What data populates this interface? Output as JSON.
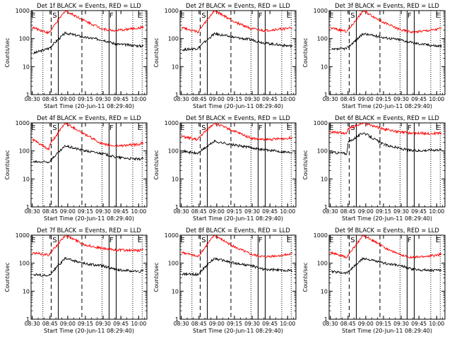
{
  "figure": {
    "ylabel": "Counts/sec",
    "xlabel": "Start Time (20-Jun-11 08:29:40)",
    "y_ticks": [
      "1",
      "10",
      "100",
      "1000"
    ],
    "x_ticks": [
      "08:30",
      "08:45",
      "09:00",
      "09:15",
      "09:30",
      "09:45",
      "10:00"
    ],
    "colors": {
      "events": "#000000",
      "lld": "#ff0000"
    },
    "markers": [
      "E",
      "S",
      "F",
      "E"
    ]
  },
  "chart_data": [
    {
      "type": "line",
      "title": "Det 1f BLACK = Events, RED = LLD",
      "xlabel": "Start Time (20-Jun-11 08:29:40)",
      "ylabel": "Counts/sec",
      "ylim": [
        1,
        1000
      ],
      "yscale": "log",
      "series": [
        {
          "name": "Events",
          "color": "#000000",
          "x": [
            "08:31",
            "08:44",
            "08:45",
            "08:58",
            "09:15",
            "09:30",
            "09:40",
            "10:00",
            "10:04"
          ],
          "values": [
            30,
            45,
            50,
            160,
            110,
            90,
            65,
            55,
            55
          ]
        },
        {
          "name": "LLD",
          "color": "#ff0000",
          "x": [
            "08:30",
            "08:44",
            "08:45",
            "08:58",
            "09:15",
            "09:30",
            "09:40",
            "10:00",
            "10:04"
          ],
          "values": [
            250,
            160,
            180,
            1000,
            420,
            220,
            190,
            240,
            260
          ]
        }
      ]
    },
    {
      "type": "line",
      "title": "Det 2f BLACK = Events, RED = LLD",
      "xlabel": "Start Time (20-Jun-11 08:29:40)",
      "ylabel": "Counts/sec",
      "ylim": [
        1,
        1000
      ],
      "yscale": "log",
      "series": [
        {
          "name": "Events",
          "color": "#000000",
          "x": [
            "08:31",
            "08:44",
            "08:45",
            "08:58",
            "09:15",
            "09:30",
            "09:40",
            "10:00",
            "10:04"
          ],
          "values": [
            40,
            45,
            50,
            150,
            110,
            90,
            70,
            55,
            55
          ]
        },
        {
          "name": "LLD",
          "color": "#ff0000",
          "x": [
            "08:30",
            "08:44",
            "08:45",
            "08:58",
            "09:15",
            "09:30",
            "09:40",
            "10:00",
            "10:04"
          ],
          "values": [
            260,
            170,
            190,
            1000,
            400,
            220,
            190,
            230,
            250
          ]
        }
      ]
    },
    {
      "type": "line",
      "title": "Det 3f BLACK = Events, RED = LLD",
      "xlabel": "Start Time (20-Jun-11 08:29:40)",
      "ylabel": "Counts/sec",
      "ylim": [
        1,
        1000
      ],
      "yscale": "log",
      "series": [
        {
          "name": "Events",
          "color": "#000000",
          "x": [
            "08:31",
            "08:44",
            "08:45",
            "08:58",
            "09:15",
            "09:30",
            "09:40",
            "10:00",
            "10:04"
          ],
          "values": [
            40,
            45,
            50,
            150,
            110,
            90,
            70,
            55,
            55
          ]
        },
        {
          "name": "LLD",
          "color": "#ff0000",
          "x": [
            "08:30",
            "08:44",
            "08:45",
            "08:58",
            "09:15",
            "09:30",
            "09:40",
            "10:00",
            "10:04"
          ],
          "values": [
            240,
            180,
            200,
            1000,
            380,
            200,
            170,
            210,
            240
          ]
        }
      ]
    },
    {
      "type": "line",
      "title": "Det 4f BLACK = Events, RED = LLD",
      "xlabel": "Start Time (20-Jun-11 08:29:40)",
      "ylabel": "Counts/sec",
      "ylim": [
        1,
        1000
      ],
      "yscale": "log",
      "series": [
        {
          "name": "Events",
          "color": "#000000",
          "x": [
            "08:31",
            "08:44",
            "08:45",
            "08:58",
            "09:15",
            "09:30",
            "09:40",
            "10:00",
            "10:04"
          ],
          "values": [
            40,
            40,
            45,
            150,
            100,
            80,
            60,
            50,
            55
          ]
        },
        {
          "name": "LLD",
          "color": "#ff0000",
          "x": [
            "08:30",
            "08:44",
            "08:45",
            "08:58",
            "09:15",
            "09:30",
            "09:40",
            "10:00",
            "10:04"
          ],
          "values": [
            260,
            110,
            170,
            1000,
            380,
            170,
            150,
            170,
            200
          ]
        }
      ]
    },
    {
      "type": "line",
      "title": "Det 5f BLACK = Events, RED = LLD",
      "xlabel": "Start Time (20-Jun-11 08:29:40)",
      "ylabel": "Counts/sec",
      "ylim": [
        1,
        1000
      ],
      "yscale": "log",
      "series": [
        {
          "name": "Events",
          "color": "#000000",
          "x": [
            "08:30",
            "08:44",
            "08:45",
            "08:58",
            "09:15",
            "09:30",
            "09:40",
            "10:00",
            "10:04"
          ],
          "values": [
            100,
            80,
            90,
            220,
            160,
            130,
            110,
            90,
            90
          ]
        },
        {
          "name": "LLD",
          "color": "#ff0000",
          "x": [
            "08:30",
            "08:44",
            "08:45",
            "08:58",
            "09:15",
            "09:30",
            "09:40",
            "10:00",
            "10:04"
          ],
          "values": [
            330,
            250,
            300,
            1000,
            500,
            280,
            250,
            280,
            300
          ]
        }
      ]
    },
    {
      "type": "line",
      "title": "Det 6f BLACK = Events, RED = LLD",
      "xlabel": "Start Time (20-Jun-11 08:29:40)",
      "ylabel": "Counts/sec",
      "ylim": [
        1,
        1000
      ],
      "yscale": "log",
      "series": [
        {
          "name": "Events",
          "color": "#000000",
          "x": [
            "08:30",
            "08:44",
            "08:45",
            "08:58",
            "09:15",
            "09:30",
            "09:40",
            "10:00",
            "10:04"
          ],
          "values": [
            90,
            80,
            200,
            450,
            170,
            120,
            100,
            110,
            110
          ]
        },
        {
          "name": "LLD",
          "color": "#ff0000",
          "x": [
            "08:30",
            "08:44",
            "08:45",
            "08:58",
            "09:15",
            "09:30",
            "09:40",
            "10:00",
            "10:04"
          ],
          "values": [
            480,
            430,
            600,
            1000,
            600,
            460,
            430,
            420,
            450
          ]
        }
      ]
    },
    {
      "type": "line",
      "title": "Det 7f BLACK = Events, RED = LLD",
      "xlabel": "Start Time (20-Jun-11 08:29:40)",
      "ylabel": "Counts/sec",
      "ylim": [
        1,
        1000
      ],
      "yscale": "log",
      "series": [
        {
          "name": "Events",
          "color": "#000000",
          "x": [
            "08:31",
            "08:44",
            "08:45",
            "08:58",
            "09:15",
            "09:30",
            "09:40",
            "10:00",
            "10:04"
          ],
          "values": [
            40,
            35,
            40,
            150,
            95,
            80,
            60,
            50,
            55
          ]
        },
        {
          "name": "LLD",
          "color": "#ff0000",
          "x": [
            "08:30",
            "08:44",
            "08:45",
            "08:58",
            "09:15",
            "09:30",
            "09:40",
            "10:00",
            "10:04"
          ],
          "values": [
            230,
            200,
            220,
            1000,
            450,
            330,
            300,
            280,
            320
          ]
        }
      ]
    },
    {
      "type": "line",
      "title": "Det 8f BLACK = Events, RED = LLD",
      "xlabel": "Start Time (20-Jun-11 08:29:40)",
      "ylabel": "Counts/sec",
      "ylim": [
        1,
        1000
      ],
      "yscale": "log",
      "series": [
        {
          "name": "Events",
          "color": "#000000",
          "x": [
            "08:31",
            "08:44",
            "08:45",
            "08:58",
            "09:15",
            "09:30",
            "09:40",
            "10:00",
            "10:04"
          ],
          "values": [
            40,
            40,
            45,
            150,
            100,
            80,
            60,
            55,
            55
          ]
        },
        {
          "name": "LLD",
          "color": "#ff0000",
          "x": [
            "08:30",
            "08:44",
            "08:45",
            "08:58",
            "09:15",
            "09:30",
            "09:40",
            "10:00",
            "10:04"
          ],
          "values": [
            250,
            170,
            190,
            1000,
            380,
            200,
            170,
            200,
            220
          ]
        }
      ]
    },
    {
      "type": "line",
      "title": "Det 9f BLACK = Events, RED = LLD",
      "xlabel": "Start Time (20-Jun-11 08:29:40)",
      "ylabel": "Counts/sec",
      "ylim": [
        1,
        1000
      ],
      "yscale": "log",
      "series": [
        {
          "name": "Events",
          "color": "#000000",
          "x": [
            "08:31",
            "08:44",
            "08:45",
            "08:58",
            "09:15",
            "09:30",
            "09:40",
            "10:00",
            "10:04"
          ],
          "values": [
            50,
            45,
            50,
            150,
            100,
            80,
            60,
            55,
            55
          ]
        },
        {
          "name": "LLD",
          "color": "#ff0000",
          "x": [
            "08:30",
            "08:44",
            "08:45",
            "08:58",
            "09:15",
            "09:30",
            "09:40",
            "10:00",
            "10:04"
          ],
          "values": [
            240,
            160,
            190,
            1000,
            380,
            190,
            160,
            190,
            210
          ]
        }
      ]
    }
  ]
}
